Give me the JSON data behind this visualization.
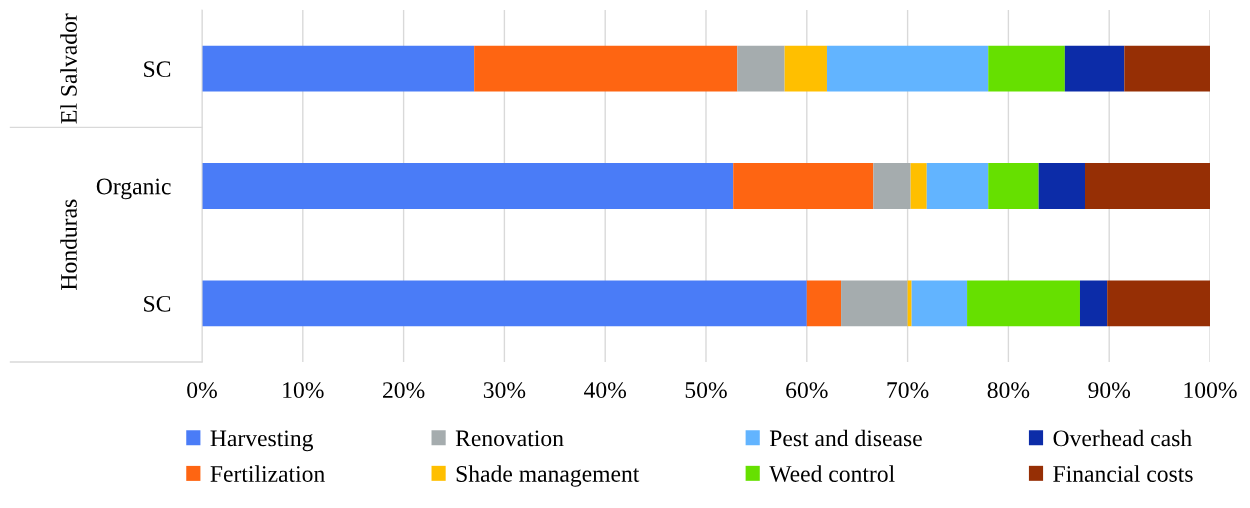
{
  "chart_data": {
    "type": "bar",
    "orientation": "horizontal",
    "stacked": true,
    "categories": [
      "SC",
      "Organic",
      "SC"
    ],
    "series": [
      {
        "name": "Harvesting",
        "color": "#4a7cf7",
        "values": [
          27.0,
          52.7,
          60.0
        ]
      },
      {
        "name": "Fertilization",
        "color": "#fe6512",
        "values": [
          26.1,
          13.9,
          3.4
        ]
      },
      {
        "name": "Renovation",
        "color": "#a5acae",
        "values": [
          4.7,
          3.7,
          6.6
        ]
      },
      {
        "name": "Shade management",
        "color": "#ffbf00",
        "values": [
          4.2,
          1.6,
          0.4
        ]
      },
      {
        "name": "Pest and disease",
        "color": "#62b4ff",
        "values": [
          16.0,
          6.1,
          5.5
        ]
      },
      {
        "name": "Weed control",
        "color": "#66e000",
        "values": [
          7.6,
          5.0,
          11.2
        ]
      },
      {
        "name": "Overhead cash",
        "color": "#0c2ca8",
        "values": [
          5.9,
          4.6,
          2.7
        ]
      },
      {
        "name": "Financial costs",
        "color": "#962f05",
        "values": [
          8.5,
          12.4,
          10.2
        ]
      }
    ],
    "xlim": [
      0,
      100
    ],
    "xticks": [
      {
        "value": 0,
        "label": "0%"
      },
      {
        "value": 10,
        "label": "10%"
      },
      {
        "value": 20,
        "label": "20%"
      },
      {
        "value": 30,
        "label": "30%"
      },
      {
        "value": 40,
        "label": "40%"
      },
      {
        "value": 50,
        "label": "50%"
      },
      {
        "value": 60,
        "label": "60%"
      },
      {
        "value": 70,
        "label": "70%"
      },
      {
        "value": 80,
        "label": "80%"
      },
      {
        "value": 90,
        "label": "90%"
      },
      {
        "value": 100,
        "label": "100%"
      }
    ],
    "annotations": [
      "El Salvador",
      "Honduras"
    ],
    "grid": "x",
    "legend": "bottom"
  }
}
